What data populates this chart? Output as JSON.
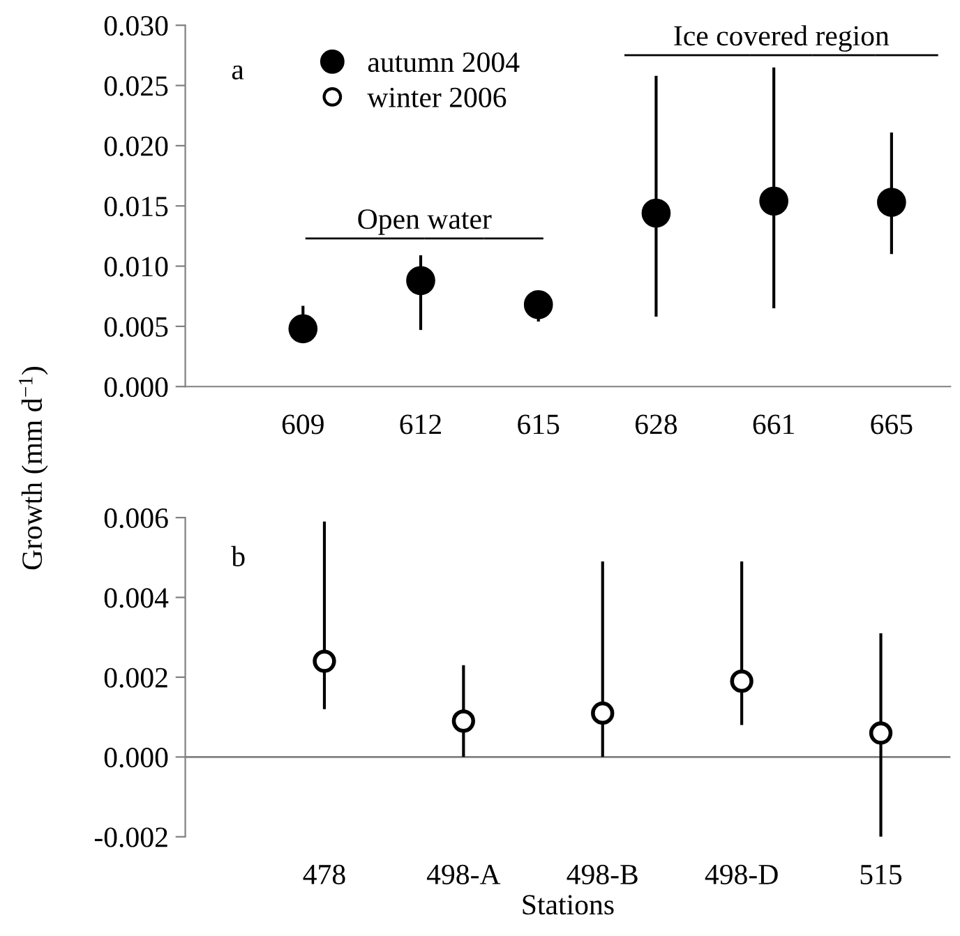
{
  "chart_data": [
    {
      "type": "scatter",
      "title": "a",
      "ylabel": "Growth (mm d$^{−1}$)",
      "categories": [
        "609",
        "612",
        "615",
        "628",
        "661",
        "665"
      ],
      "series": [
        {
          "name": "autumn 2004",
          "color": "#000000",
          "values": [
            0.0048,
            0.0088,
            0.0068,
            0.0144,
            0.0154,
            0.0153
          ],
          "errors": [
            [
              0.0037,
              0.0067
            ],
            [
              0.0047,
              0.0109
            ],
            [
              0.0054,
              0.0079
            ],
            [
              0.0058,
              0.0258
            ],
            [
              0.0065,
              0.0265
            ],
            [
              0.011,
              0.0211
            ]
          ]
        }
      ],
      "ylim": [
        0,
        0.03
      ],
      "yticks": [
        {
          "value": 0,
          "label": "0.000"
        },
        {
          "value": 0.005,
          "label": "0.005"
        },
        {
          "value": 0.01,
          "label": "0.010"
        },
        {
          "value": 0.015,
          "label": "0.015"
        },
        {
          "value": 0.02,
          "label": "0.020"
        },
        {
          "value": 0.025,
          "label": "0.025"
        },
        {
          "value": 0.03,
          "label": "0.030"
        }
      ],
      "annotations": [
        "Open water",
        "Ice covered region"
      ],
      "marker": "circle",
      "legend": "top left",
      "grid": false
    },
    {
      "type": "scatter",
      "title": "b",
      "xlabel": "Stations",
      "categories": [
        "478",
        "498-A",
        "498-B",
        "498-D",
        "515"
      ],
      "series": [
        {
          "name": "winter 2006",
          "color": "#ffffff",
          "values": [
            0.0024,
            0.0009,
            0.0011,
            0.0019,
            0.0006
          ],
          "errors": [
            [
              0.0012,
              0.0059
            ],
            [
              0.0,
              0.0023
            ],
            [
              0.0,
              0.0049
            ],
            [
              0.0008,
              0.0049
            ],
            [
              -0.002,
              0.0031
            ]
          ]
        }
      ],
      "ylim": [
        -0.002,
        0.006
      ],
      "yticks": [
        {
          "value": -0.002,
          "label": "-0.002"
        },
        {
          "value": 0,
          "label": "0.000"
        },
        {
          "value": 0.002,
          "label": "0.002"
        },
        {
          "value": 0.004,
          "label": "0.004"
        },
        {
          "value": 0.006,
          "label": "0.006"
        }
      ],
      "ref_lines": [
        {
          "axis": "y",
          "value": 0,
          "color": "#808080"
        }
      ],
      "marker": "circle",
      "grid": false
    }
  ]
}
